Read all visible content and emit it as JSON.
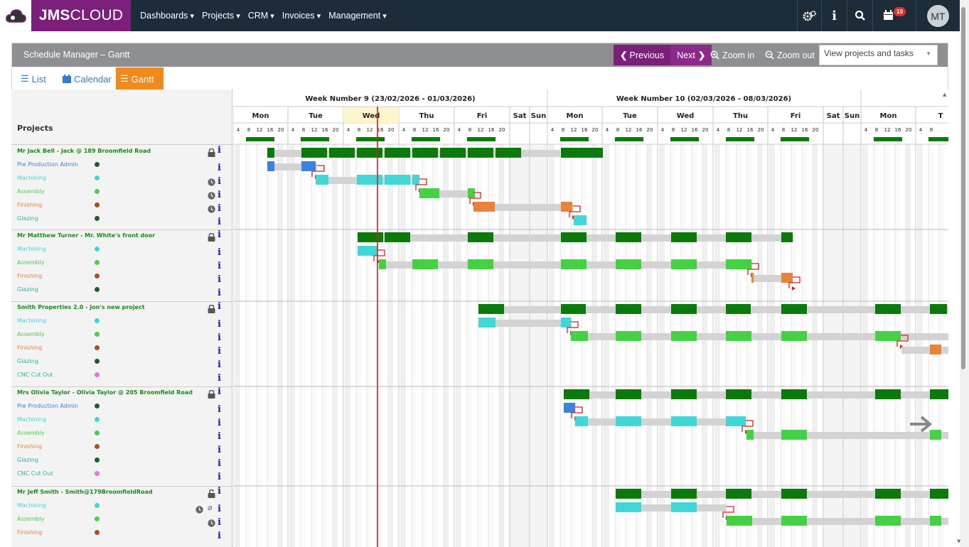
{
  "brand": {
    "bold": "JMS",
    "rest": "CLOUD"
  },
  "menu": [
    "Dashboards",
    "Projects",
    "CRM",
    "Invoices",
    "Management"
  ],
  "nav": {
    "notification_count": "10",
    "avatar_initials": "MT"
  },
  "panel": {
    "title": "Schedule Manager – Gantt",
    "prev_label": "Previous",
    "next_label": "Next",
    "zoom_in_label": "Zoom in",
    "zoom_out_label": "Zoom out",
    "view_select": "View projects and tasks"
  },
  "tabs": [
    "List",
    "Calendar",
    "Gantt"
  ],
  "projects_header": "Projects",
  "weeks": [
    "Week Number 9 (23/02/2026 - 01/03/2026)",
    "Week Number 10 (02/03/2026 - 08/03/2026)"
  ],
  "days": [
    "Mon",
    "Tue",
    "Wed",
    "Thu",
    "Fri",
    "Sat",
    "Sun",
    "Mon",
    "Tue",
    "Wed",
    "Thu",
    "Fri",
    "Sat",
    "Sun",
    "Mon",
    "T"
  ],
  "hours": [
    "4",
    "8",
    "12",
    "16",
    "20"
  ],
  "rows": [
    {
      "label": "Mr Jack Bell - Jack @ 189 Broomfield Road",
      "type": "project",
      "lock": true
    },
    {
      "label": "Pre Production Admin",
      "type": "task",
      "color": "#3b82e0",
      "dot": "#1f5c2e"
    },
    {
      "label": "Machining",
      "type": "task",
      "color": "#3fd7d7",
      "dot": "#3fd7d7",
      "clock": true
    },
    {
      "label": "Assembly",
      "type": "task",
      "color": "#44d244",
      "dot": "#44d244",
      "clock": true
    },
    {
      "label": "Finishing",
      "type": "task",
      "color": "#e8843a",
      "dot": "#a6501e",
      "clock": true
    },
    {
      "label": "Glazing",
      "type": "task",
      "color": "#2ab3a0",
      "dot": "#1f5c2e"
    },
    {
      "label": "Mr Matthew Turner - Mr. White's front door",
      "type": "project",
      "lock": true
    },
    {
      "label": "Machining",
      "type": "task",
      "color": "#3fd7d7",
      "dot": "#3fd7d7"
    },
    {
      "label": "Assembly",
      "type": "task",
      "color": "#44d244",
      "dot": "#44d244"
    },
    {
      "label": "Finishing",
      "type": "task",
      "color": "#e8843a",
      "dot": "#a6501e"
    },
    {
      "label": "Glazing",
      "type": "task",
      "color": "#2ab3a0",
      "dot": "#1f5c2e"
    },
    {
      "label": "Smith Properties 2.0 - Jon's new project",
      "type": "project",
      "lock": true
    },
    {
      "label": "Machining",
      "type": "task",
      "color": "#3fd7d7",
      "dot": "#3fd7d7"
    },
    {
      "label": "Assembly",
      "type": "task",
      "color": "#44d244",
      "dot": "#44d244"
    },
    {
      "label": "Finishing",
      "type": "task",
      "color": "#e8843a",
      "dot": "#a6501e"
    },
    {
      "label": "Glazing",
      "type": "task",
      "color": "#2ab3a0",
      "dot": "#1f5c2e"
    },
    {
      "label": "CNC Cut Out",
      "type": "task",
      "color": "#2ab3a0",
      "dot": "#ee6ee6"
    },
    {
      "label": "Mrs Olivia Taylor - Olivia Taylor @ 205 Broomfield Road",
      "type": "project",
      "lock": true
    },
    {
      "label": "Pre Production Admin",
      "type": "task",
      "color": "#3b82e0",
      "dot": "#1f5c2e"
    },
    {
      "label": "Machining",
      "type": "task",
      "color": "#3fd7d7",
      "dot": "#3fd7d7"
    },
    {
      "label": "Assembly",
      "type": "task",
      "color": "#44d244",
      "dot": "#44d244"
    },
    {
      "label": "Finishing",
      "type": "task",
      "color": "#e8843a",
      "dot": "#a6501e"
    },
    {
      "label": "Glazing",
      "type": "task",
      "color": "#2ab3a0",
      "dot": "#1f5c2e"
    },
    {
      "label": "CNC Cut Out",
      "type": "task",
      "color": "#2ab3a0",
      "dot": "#ee6ee6"
    },
    {
      "label": "Mr Jeff Smith - Smith@179BroomfieldRoad",
      "type": "project",
      "lock": true,
      "unlocked": true
    },
    {
      "label": "Machining",
      "type": "task",
      "color": "#3fd7d7",
      "dot": "#3fd7d7",
      "clock": true,
      "clip": true
    },
    {
      "label": "Assembly",
      "type": "task",
      "color": "#44d244",
      "dot": "#44d244",
      "clock": true
    },
    {
      "label": "Finishing",
      "type": "task",
      "color": "#e8843a",
      "dot": "#a6501e"
    }
  ],
  "colors": {
    "project_bar": "#0a7a0a",
    "today_line": "#cc2222",
    "dep_arrow": "#dd2222"
  }
}
